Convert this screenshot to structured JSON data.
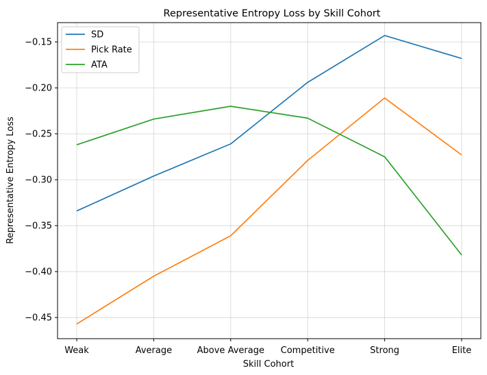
{
  "chart_data": {
    "type": "line",
    "title": "Representative Entropy Loss by Skill Cohort",
    "xlabel": "Skill Cohort",
    "ylabel": "Representative Entropy Loss",
    "categories": [
      "Weak",
      "Average",
      "Above Average",
      "Competitive",
      "Strong",
      "Elite"
    ],
    "yticks": [
      "-0.45",
      "-0.40",
      "-0.35",
      "-0.30",
      "-0.25",
      "-0.20",
      "-0.15"
    ],
    "ylim": [
      -0.473,
      -0.129
    ],
    "grid": true,
    "legend_position": "top-left",
    "series": [
      {
        "name": "SD",
        "color": "#1f77b4",
        "values": [
          -0.334,
          -0.296,
          -0.261,
          -0.194,
          -0.143,
          -0.168
        ]
      },
      {
        "name": "Pick Rate",
        "color": "#ff7f0e",
        "values": [
          -0.457,
          -0.405,
          -0.361,
          -0.279,
          -0.211,
          -0.273
        ]
      },
      {
        "name": "ATA",
        "color": "#2ca02c",
        "values": [
          -0.262,
          -0.234,
          -0.22,
          -0.233,
          -0.275,
          -0.382
        ]
      }
    ]
  }
}
